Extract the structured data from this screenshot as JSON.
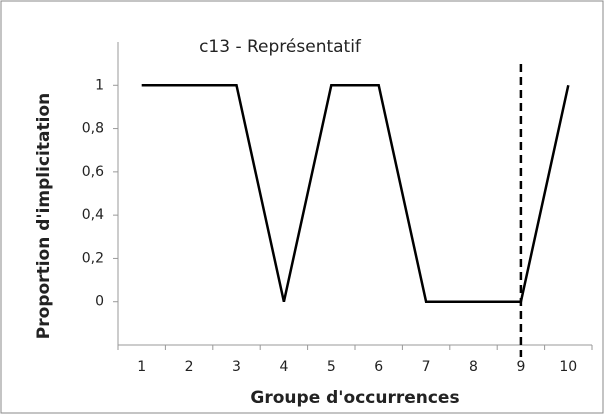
{
  "chart_data": {
    "type": "line",
    "title": "c13  - Représentatif",
    "x_label": "Groupe d'occurrences",
    "y_label": "Proportion d'implicitation",
    "categories": [
      1,
      2,
      3,
      4,
      5,
      6,
      7,
      8,
      9,
      10
    ],
    "values": [
      1,
      1,
      1,
      0,
      1,
      1,
      0,
      0,
      0,
      1
    ],
    "color": "#000000",
    "ylim": [
      -0.2,
      1.2
    ],
    "yticks": [
      0,
      {
        "value": 0.2,
        "label": "0,2"
      },
      {
        "value": 0.4,
        "label": "0,4"
      },
      {
        "value": 0.6,
        "label": "0,6"
      },
      {
        "value": 0.8,
        "label": "0,8"
      },
      1
    ],
    "vline": 9,
    "vline_style": "dashed",
    "grid": false
  }
}
